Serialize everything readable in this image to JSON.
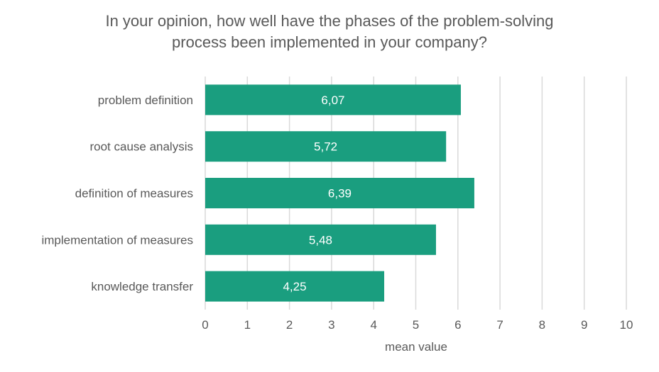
{
  "chart_data": {
    "type": "bar",
    "orientation": "horizontal",
    "title": "In your opinion, how well have the phases of the problem-solving process been implemented in your company?",
    "title_lines": [
      "In your opinion, how well have the phases of the problem-solving",
      "process been implemented in your company?"
    ],
    "categories": [
      "problem definition",
      "root cause analysis",
      "definition of measures",
      "implementation of measures",
      "knowledge transfer"
    ],
    "values": [
      6.07,
      5.72,
      6.39,
      5.48,
      4.25
    ],
    "data_labels": [
      "6,07",
      "5,72",
      "6,39",
      "5,48",
      "4,25"
    ],
    "xlabel": "mean value",
    "ylabel": "",
    "xlim": [
      0,
      10
    ],
    "xticks": [
      "0",
      "1",
      "2",
      "3",
      "4",
      "5",
      "6",
      "7",
      "8",
      "9",
      "10"
    ],
    "grid": "vertical",
    "legend": "none",
    "bar_color": "#1a9e7f",
    "grid_color": "#d9d9d9"
  }
}
